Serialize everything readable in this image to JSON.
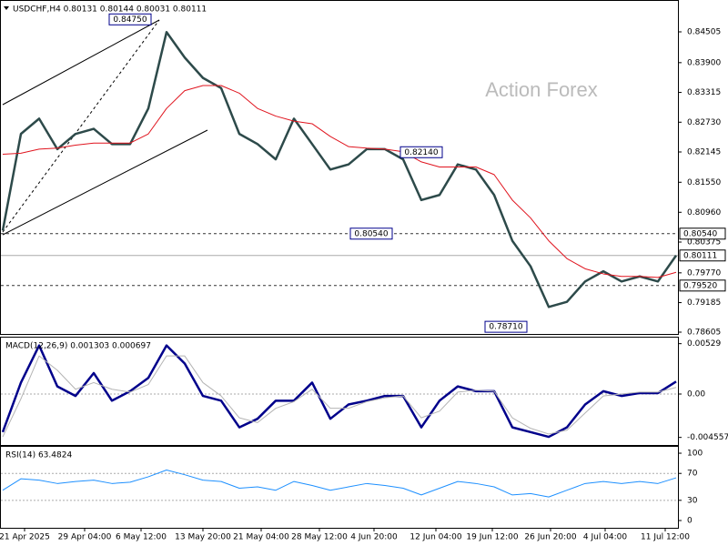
{
  "chart_data": [
    {
      "type": "line",
      "title": "USDCHF,H4  0.80131 0.80144 0.80031 0.80111",
      "watermark": "Action Forex",
      "xlim": [
        -0.15,
        37.1
      ],
      "xticks": [
        {
          "value": 1.2,
          "label": "21 Apr 2025"
        },
        {
          "value": 4.5,
          "label": "29 Apr 04:00"
        },
        {
          "value": 7.6,
          "label": "6 May 12:00"
        },
        {
          "value": 11,
          "label": "13 May 20:00"
        },
        {
          "value": 14.2,
          "label": "21 May 04:00"
        },
        {
          "value": 17.4,
          "label": "28 May 12:00"
        },
        {
          "value": 20.4,
          "label": "4 Jun 20:00"
        },
        {
          "value": 23.8,
          "label": "12 Jun 04:00"
        },
        {
          "value": 26.9,
          "label": "19 Jun 12:00"
        },
        {
          "value": 30.1,
          "label": "26 Jun 20:00"
        },
        {
          "value": 33.1,
          "label": "4 Jul 04:00"
        },
        {
          "value": 36.4,
          "label": "11 Jul 12:00"
        }
      ],
      "ylim": [
        0.78569,
        0.85113
      ],
      "yticks": [
        {
          "value": 0.84505,
          "label": "0.84505"
        },
        {
          "value": 0.839,
          "label": "0.83900"
        },
        {
          "value": 0.83315,
          "label": "0.83315"
        },
        {
          "value": 0.8273,
          "label": "0.82730"
        },
        {
          "value": 0.82145,
          "label": "0.82145"
        },
        {
          "value": 0.8155,
          "label": "0.81550"
        },
        {
          "value": 0.8096,
          "label": "0.80960"
        },
        {
          "value": 0.80375,
          "label": "0.80375"
        },
        {
          "value": 0.7977,
          "label": "0.79770"
        },
        {
          "value": 0.79185,
          "label": "0.79185"
        },
        {
          "value": 0.78605,
          "label": "0.78605"
        }
      ],
      "series": [
        {
          "color": "#2d4a4a",
          "values": [
            0.806,
            0.825,
            0.828,
            0.822,
            0.825,
            0.826,
            0.823,
            0.823,
            0.83,
            0.845,
            0.84,
            0.836,
            0.834,
            0.825,
            0.823,
            0.82,
            0.828,
            0.823,
            0.818,
            0.819,
            0.822,
            0.822,
            0.82,
            0.812,
            0.813,
            0.819,
            0.818,
            0.813,
            0.804,
            0.799,
            0.791,
            0.792,
            0.796,
            0.798,
            0.796,
            0.797,
            0.796,
            0.80111
          ]
        },
        {
          "color": "#e0141e",
          "values": [
            0.821,
            0.8212,
            0.822,
            0.8222,
            0.8228,
            0.8232,
            0.8232,
            0.8232,
            0.825,
            0.83,
            0.8335,
            0.8345,
            0.8345,
            0.833,
            0.83,
            0.8285,
            0.8275,
            0.827,
            0.8245,
            0.8225,
            0.8222,
            0.822,
            0.8215,
            0.8195,
            0.8185,
            0.8185,
            0.8185,
            0.817,
            0.812,
            0.8085,
            0.804,
            0.8005,
            0.7985,
            0.7975,
            0.797,
            0.797,
            0.7968,
            0.7978
          ]
        }
      ],
      "levels": [
        {
          "value": 0.8054,
          "label": "0.80540",
          "style": "dashed"
        },
        {
          "value": 0.80111,
          "label": "0.80111",
          "style": "solid"
        },
        {
          "value": 0.7952,
          "label": "0.79520",
          "style": "dashed"
        }
      ],
      "annotations": [
        {
          "value": 0.8475,
          "label": "0.84750"
        },
        {
          "value": 0.8214,
          "label": "0.82140"
        },
        {
          "value": 0.8054,
          "label": "0.80540"
        },
        {
          "value": 0.7871,
          "label": "0.78710"
        }
      ]
    },
    {
      "type": "line",
      "title": "MACD(12,26,9) 0.001303 0.000697",
      "ylim": [
        -0.005354,
        0.005927
      ],
      "yticks": [
        0.00529,
        {
          "value": 0,
          "label": "0.00"
        },
        -0.004557
      ],
      "levels": [
        0
      ],
      "series": [
        {
          "color": "#00008b",
          "values": [
            -0.004,
            0.0012,
            0.0051,
            0.0008,
            -0.0002,
            0.0022,
            -0.0007,
            0.0003,
            0.0017,
            0.0051,
            0.0032,
            -0.0002,
            -0.0007,
            -0.0035,
            -0.0026,
            -0.0007,
            -0.0007,
            0.0012,
            -0.0026,
            -0.0011,
            -0.0007,
            -0.0002,
            -0.0002,
            -0.0035,
            -0.0007,
            0.0008,
            0.0003,
            0.0003,
            -0.0035,
            -0.004,
            -0.0045,
            -0.0035,
            -0.0011,
            0.0003,
            -0.0002,
            0.0001,
            0.0001,
            0.001303
          ]
        },
        {
          "color": "#b4b4b4",
          "values": [
            -0.0045,
            -0.0005,
            0.004,
            0.0025,
            0.0005,
            0.0012,
            0.0005,
            0.0002,
            0.001,
            0.004,
            0.004,
            0.0012,
            -0.0002,
            -0.0025,
            -0.003,
            -0.0015,
            -0.0008,
            0.0005,
            -0.0015,
            -0.0015,
            -0.0008,
            -0.0004,
            -0.0002,
            -0.0025,
            -0.0018,
            0.0002,
            0.0004,
            0.0003,
            -0.0025,
            -0.0036,
            -0.0042,
            -0.0038,
            -0.002,
            -0.0002,
            0,
            0.0002,
            0.0002,
            0.000697
          ]
        }
      ]
    },
    {
      "type": "line",
      "title": "RSI(14) 63.4824",
      "ylim": [
        -10.8,
        109.5
      ],
      "yticks": [
        100,
        70,
        30,
        0
      ],
      "levels": [
        70,
        30
      ],
      "series": [
        {
          "color": "#1e90ff",
          "values": [
            45,
            62,
            60,
            55,
            58,
            60,
            55,
            57,
            65,
            75,
            68,
            60,
            58,
            48,
            50,
            45,
            58,
            52,
            45,
            50,
            55,
            52,
            48,
            38,
            48,
            58,
            55,
            50,
            38,
            40,
            35,
            45,
            55,
            58,
            55,
            58,
            55,
            63.4824
          ]
        }
      ]
    }
  ]
}
